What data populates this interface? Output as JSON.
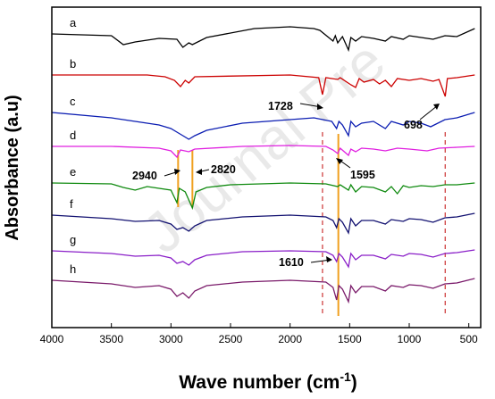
{
  "chart_data": {
    "type": "line",
    "title": "",
    "xlabel": "Wave number",
    "xlabel_unit_base": "cm",
    "xlabel_unit_exp": "-1",
    "ylabel": "Absorbance (a.u)",
    "xlim": [
      4000,
      400
    ],
    "x_reversed": true,
    "xticks": [
      "4000",
      "3500",
      "3000",
      "2500",
      "2000",
      "1500",
      "1000",
      "500"
    ],
    "y_ticks_shown": false,
    "grid": false,
    "legend": "inline letters at left",
    "watermark": "Journal Pre",
    "series": [
      {
        "name": "a",
        "color": "#000000",
        "points": [
          [
            4000,
            0
          ],
          [
            3500,
            -2
          ],
          [
            3400,
            -12
          ],
          [
            3300,
            -9
          ],
          [
            3100,
            -5
          ],
          [
            2950,
            -6
          ],
          [
            2900,
            -15
          ],
          [
            2850,
            -10
          ],
          [
            2820,
            -12
          ],
          [
            2700,
            -4
          ],
          [
            2300,
            6
          ],
          [
            2000,
            8
          ],
          [
            1800,
            6
          ],
          [
            1750,
            4
          ],
          [
            1640,
            -8
          ],
          [
            1620,
            -2
          ],
          [
            1600,
            -10
          ],
          [
            1560,
            -3
          ],
          [
            1510,
            -18
          ],
          [
            1490,
            -4
          ],
          [
            1450,
            -8
          ],
          [
            1400,
            -3
          ],
          [
            1300,
            -5
          ],
          [
            1200,
            -8
          ],
          [
            1150,
            -3
          ],
          [
            1050,
            -6
          ],
          [
            1000,
            -2
          ],
          [
            900,
            -4
          ],
          [
            800,
            -6
          ],
          [
            700,
            -2
          ],
          [
            600,
            -3
          ],
          [
            450,
            6
          ]
        ]
      },
      {
        "name": "b",
        "color": "#cc0000",
        "points": [
          [
            4000,
            0
          ],
          [
            3200,
            0
          ],
          [
            3050,
            -2
          ],
          [
            2970,
            -6
          ],
          [
            2920,
            -13
          ],
          [
            2880,
            -6
          ],
          [
            2850,
            -9
          ],
          [
            2800,
            -2
          ],
          [
            2000,
            0
          ],
          [
            1760,
            -3
          ],
          [
            1728,
            -22
          ],
          [
            1700,
            -3
          ],
          [
            1600,
            -5
          ],
          [
            1580,
            -3
          ],
          [
            1490,
            -11
          ],
          [
            1450,
            -14
          ],
          [
            1420,
            -4
          ],
          [
            1380,
            -8
          ],
          [
            1300,
            -5
          ],
          [
            1250,
            -10
          ],
          [
            1200,
            -6
          ],
          [
            1150,
            -13
          ],
          [
            1100,
            -4
          ],
          [
            1000,
            -6
          ],
          [
            900,
            -4
          ],
          [
            800,
            -7
          ],
          [
            750,
            -5
          ],
          [
            698,
            -24
          ],
          [
            680,
            -4
          ],
          [
            600,
            -3
          ],
          [
            450,
            0
          ]
        ]
      },
      {
        "name": "c",
        "color": "#0b1db2",
        "points": [
          [
            4000,
            0
          ],
          [
            3500,
            -6
          ],
          [
            3300,
            -10
          ],
          [
            3100,
            -14
          ],
          [
            3000,
            -18
          ],
          [
            2950,
            -22
          ],
          [
            2900,
            -26
          ],
          [
            2850,
            -30
          ],
          [
            2800,
            -26
          ],
          [
            2700,
            -20
          ],
          [
            2400,
            -12
          ],
          [
            2000,
            -8
          ],
          [
            1800,
            -6
          ],
          [
            1650,
            -10
          ],
          [
            1610,
            -18
          ],
          [
            1590,
            -10
          ],
          [
            1560,
            -14
          ],
          [
            1510,
            -26
          ],
          [
            1490,
            -10
          ],
          [
            1450,
            -16
          ],
          [
            1400,
            -12
          ],
          [
            1300,
            -10
          ],
          [
            1200,
            -18
          ],
          [
            1150,
            -10
          ],
          [
            1050,
            -14
          ],
          [
            1000,
            -10
          ],
          [
            900,
            -12
          ],
          [
            820,
            -16
          ],
          [
            700,
            -8
          ],
          [
            600,
            -6
          ],
          [
            450,
            0
          ]
        ]
      },
      {
        "name": "d",
        "color": "#e020e0",
        "points": [
          [
            4000,
            0
          ],
          [
            3500,
            0
          ],
          [
            3100,
            -2
          ],
          [
            3000,
            -5
          ],
          [
            2950,
            -12
          ],
          [
            2920,
            -4
          ],
          [
            2850,
            -6
          ],
          [
            2800,
            -3
          ],
          [
            2400,
            0
          ],
          [
            2000,
            1
          ],
          [
            1700,
            0
          ],
          [
            1640,
            -4
          ],
          [
            1600,
            -8
          ],
          [
            1580,
            -2
          ],
          [
            1510,
            -10
          ],
          [
            1490,
            -3
          ],
          [
            1450,
            -6
          ],
          [
            1400,
            -2
          ],
          [
            1300,
            -3
          ],
          [
            1200,
            -5
          ],
          [
            1100,
            -2
          ],
          [
            1000,
            -3
          ],
          [
            850,
            -5
          ],
          [
            750,
            -2
          ],
          [
            600,
            -1
          ],
          [
            450,
            0
          ]
        ]
      },
      {
        "name": "e",
        "color": "#0f8a0f",
        "points": [
          [
            4000,
            0
          ],
          [
            3500,
            -1
          ],
          [
            3400,
            -5
          ],
          [
            3300,
            -8
          ],
          [
            3200,
            -4
          ],
          [
            3000,
            -8
          ],
          [
            2950,
            -22
          ],
          [
            2930,
            -6
          ],
          [
            2880,
            -10
          ],
          [
            2820,
            -28
          ],
          [
            2790,
            -10
          ],
          [
            2700,
            -5
          ],
          [
            2500,
            -2
          ],
          [
            2000,
            0
          ],
          [
            1700,
            -1
          ],
          [
            1600,
            -4
          ],
          [
            1580,
            -2
          ],
          [
            1510,
            -8
          ],
          [
            1490,
            -2
          ],
          [
            1450,
            -10
          ],
          [
            1400,
            -4
          ],
          [
            1300,
            -5
          ],
          [
            1200,
            -10
          ],
          [
            1150,
            -4
          ],
          [
            1100,
            -12
          ],
          [
            1050,
            -3
          ],
          [
            1000,
            -5
          ],
          [
            900,
            -3
          ],
          [
            800,
            -4
          ],
          [
            700,
            -2
          ],
          [
            600,
            -2
          ],
          [
            450,
            0
          ]
        ]
      },
      {
        "name": "f",
        "color": "#111070",
        "points": [
          [
            4000,
            0
          ],
          [
            3500,
            -4
          ],
          [
            3300,
            -7
          ],
          [
            3100,
            -6
          ],
          [
            3000,
            -10
          ],
          [
            2950,
            -16
          ],
          [
            2900,
            -14
          ],
          [
            2850,
            -18
          ],
          [
            2800,
            -12
          ],
          [
            2700,
            -6
          ],
          [
            2400,
            -2
          ],
          [
            2000,
            0
          ],
          [
            1700,
            -2
          ],
          [
            1640,
            -6
          ],
          [
            1610,
            -14
          ],
          [
            1590,
            -4
          ],
          [
            1560,
            -8
          ],
          [
            1510,
            -20
          ],
          [
            1490,
            -4
          ],
          [
            1450,
            -12
          ],
          [
            1400,
            -6
          ],
          [
            1300,
            -6
          ],
          [
            1200,
            -10
          ],
          [
            1150,
            -5
          ],
          [
            1050,
            -7
          ],
          [
            1000,
            -4
          ],
          [
            900,
            -5
          ],
          [
            800,
            -8
          ],
          [
            700,
            -3
          ],
          [
            600,
            -2
          ],
          [
            450,
            2
          ]
        ]
      },
      {
        "name": "g",
        "color": "#8a1fc8",
        "points": [
          [
            4000,
            0
          ],
          [
            3500,
            -3
          ],
          [
            3300,
            -6
          ],
          [
            3100,
            -5
          ],
          [
            3000,
            -8
          ],
          [
            2950,
            -14
          ],
          [
            2900,
            -12
          ],
          [
            2850,
            -16
          ],
          [
            2800,
            -10
          ],
          [
            2700,
            -5
          ],
          [
            2400,
            -1
          ],
          [
            2000,
            0
          ],
          [
            1700,
            -1
          ],
          [
            1640,
            -5
          ],
          [
            1610,
            -12
          ],
          [
            1590,
            -3
          ],
          [
            1560,
            -7
          ],
          [
            1510,
            -18
          ],
          [
            1490,
            -3
          ],
          [
            1450,
            -10
          ],
          [
            1400,
            -5
          ],
          [
            1300,
            -5
          ],
          [
            1200,
            -9
          ],
          [
            1150,
            -4
          ],
          [
            1050,
            -6
          ],
          [
            1000,
            -3
          ],
          [
            900,
            -4
          ],
          [
            800,
            -7
          ],
          [
            700,
            -3
          ],
          [
            600,
            -2
          ],
          [
            450,
            1
          ]
        ]
      },
      {
        "name": "h",
        "color": "#7a1a6a",
        "points": [
          [
            4000,
            0
          ],
          [
            3500,
            -4
          ],
          [
            3300,
            -8
          ],
          [
            3100,
            -6
          ],
          [
            3000,
            -10
          ],
          [
            2950,
            -18
          ],
          [
            2900,
            -14
          ],
          [
            2850,
            -20
          ],
          [
            2800,
            -12
          ],
          [
            2700,
            -6
          ],
          [
            2400,
            -2
          ],
          [
            2000,
            0
          ],
          [
            1700,
            -2
          ],
          [
            1640,
            -8
          ],
          [
            1610,
            -22
          ],
          [
            1590,
            -6
          ],
          [
            1560,
            -10
          ],
          [
            1510,
            -24
          ],
          [
            1490,
            -6
          ],
          [
            1450,
            -14
          ],
          [
            1400,
            -7
          ],
          [
            1300,
            -7
          ],
          [
            1200,
            -12
          ],
          [
            1150,
            -6
          ],
          [
            1050,
            -8
          ],
          [
            1000,
            -5
          ],
          [
            900,
            -6
          ],
          [
            800,
            -9
          ],
          [
            700,
            -4
          ],
          [
            600,
            -3
          ],
          [
            450,
            2
          ]
        ]
      }
    ],
    "vertical_markers": [
      {
        "x": 1728,
        "style": "dashed",
        "color": "#cc3333"
      },
      {
        "x": 698,
        "style": "dashed",
        "color": "#cc3333"
      },
      {
        "x": 2940,
        "style": "solid",
        "color": "#f0a020"
      },
      {
        "x": 2820,
        "style": "solid",
        "color": "#f0a020"
      },
      {
        "x": 1595,
        "style": "solid",
        "color": "#f0a020"
      }
    ],
    "annotations": [
      "1728",
      "698",
      "2940",
      "2820",
      "1595",
      "1610"
    ]
  }
}
